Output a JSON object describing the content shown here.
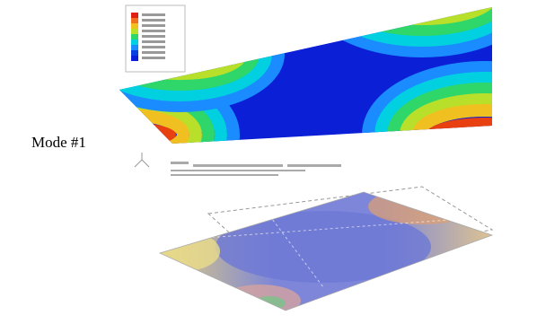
{
  "label": "Mode #1"
}
